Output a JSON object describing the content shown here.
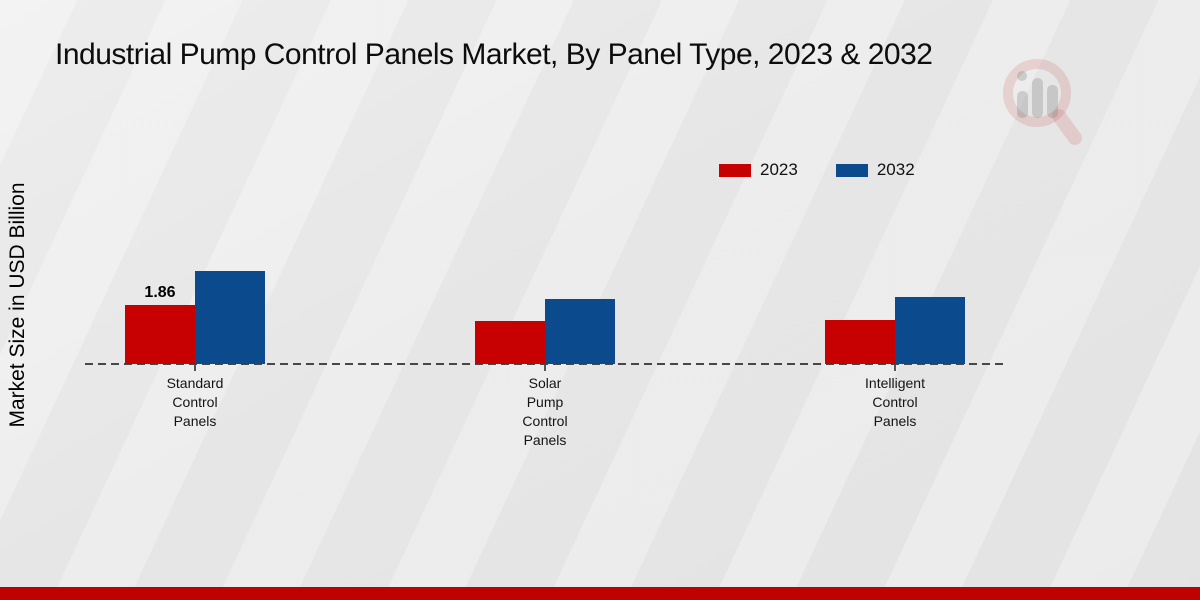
{
  "page": {
    "title": "Industrial Pump Control Panels Market, By Panel Type, 2023 & 2032",
    "y_axis_label": "Market Size in USD Billion"
  },
  "colors": {
    "series_2023": "#c70101",
    "series_2032": "#0b4a8c",
    "footer_bar": "#bf0101",
    "axis_line": "#474747",
    "text": "#111111",
    "background": "#eaeaea"
  },
  "legend": {
    "items": [
      {
        "label": "2023",
        "color": "#c70101"
      },
      {
        "label": "2032",
        "color": "#0b4a8c"
      }
    ]
  },
  "chart_data": {
    "type": "bar",
    "title": "Industrial Pump Control Panels Market, By Panel Type, 2023 & 2032",
    "xlabel": "",
    "ylabel": "Market Size in USD Billion",
    "categories": [
      "Standard Control Panels",
      "Solar Pump Control Panels",
      "Intelligent Control Panels"
    ],
    "category_label_lines": [
      [
        "Standard",
        "Control",
        "Panels"
      ],
      [
        "Solar",
        "Pump",
        "Control",
        "Panels"
      ],
      [
        "Intelligent",
        "Control",
        "Panels"
      ]
    ],
    "series": [
      {
        "name": "2023",
        "color": "#c70101",
        "values": [
          1.86,
          1.35,
          1.38
        ]
      },
      {
        "name": "2032",
        "color": "#0b4a8c",
        "values": [
          2.93,
          2.05,
          2.11
        ]
      }
    ],
    "data_labels": [
      {
        "series_index": 0,
        "category_index": 0,
        "text": "1.86"
      }
    ],
    "ylim": [
      0,
      3.2
    ],
    "grid": false,
    "baseline_style": "dashed",
    "legend_position": "top-right",
    "watermark_icon": "magnifier-bar-chart-logo"
  }
}
